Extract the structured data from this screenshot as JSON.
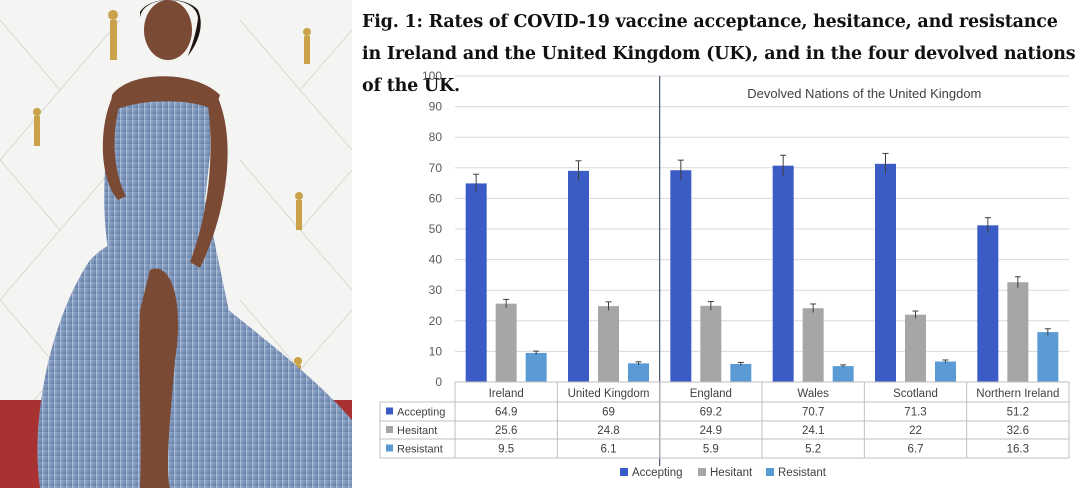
{
  "caption": "Fig. 1: Rates of COVID-19 vaccine acceptance, hesitance, and resistance in Ireland and the United Kingdom (UK), and in the four devolved nations of the UK.",
  "colors": {
    "accepting": "#3b5cc4",
    "hesitant": "#a6a6a6",
    "resistant": "#5b9bd5",
    "wall": "#f3f3f3",
    "carpet": "#a83232",
    "gown": "#7f97bb"
  },
  "chart_data": {
    "type": "bar",
    "title": "",
    "annotation": "Devolved Nations of the United Kingdom",
    "categories": [
      "Ireland",
      "United Kingdom",
      "England",
      "Wales",
      "Scotland",
      "Northern Ireland"
    ],
    "series": [
      {
        "name": "Accepting",
        "values": [
          64.9,
          69,
          69.2,
          70.7,
          71.3,
          51.2
        ],
        "error": [
          3.0,
          3.3,
          3.3,
          3.4,
          3.4,
          2.5
        ]
      },
      {
        "name": "Hesitant",
        "values": [
          25.6,
          24.8,
          24.9,
          24.1,
          22,
          32.6
        ],
        "error": [
          1.4,
          1.4,
          1.4,
          1.4,
          1.2,
          1.8
        ]
      },
      {
        "name": "Resistant",
        "values": [
          9.5,
          6.1,
          5.9,
          5.2,
          6.7,
          16.3
        ],
        "error": [
          0.6,
          0.5,
          0.5,
          0.4,
          0.5,
          1.1
        ]
      }
    ],
    "table": [
      {
        "label": "Accepting",
        "values": [
          "64.9",
          "69",
          "69.2",
          "70.7",
          "71.3",
          "51.2"
        ]
      },
      {
        "label": "Hesitant",
        "values": [
          "25.6",
          "24.8",
          "24.9",
          "24.1",
          "22",
          "32.6"
        ]
      },
      {
        "label": "Resistant",
        "values": [
          "9.5",
          "6.1",
          "5.9",
          "5.2",
          "6.7",
          "16.3"
        ]
      }
    ],
    "y_ticks": [
      "100",
      "90",
      "80",
      "70",
      "60",
      "50",
      "40",
      "30",
      "20",
      "10",
      "0"
    ],
    "ylim": [
      0,
      100
    ],
    "xlabel": "",
    "ylabel": "",
    "grid": true,
    "legend": "bottom",
    "divider_after_index": 1
  }
}
